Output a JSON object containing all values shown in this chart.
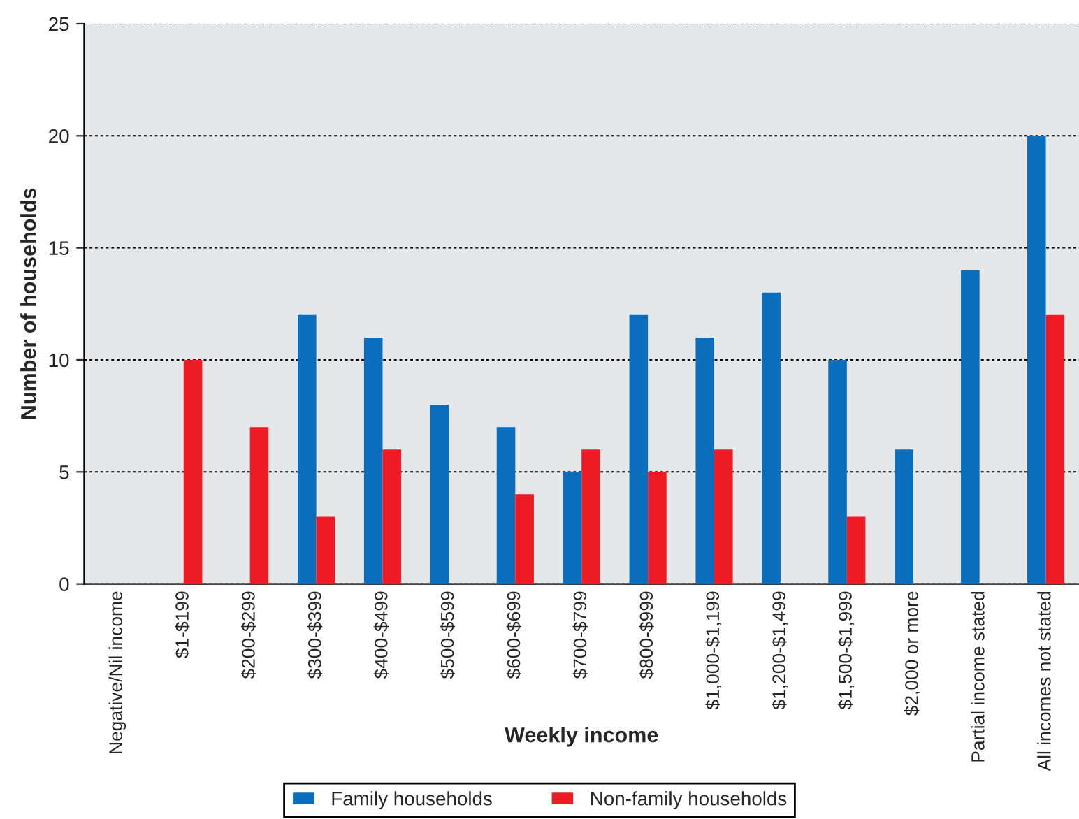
{
  "chart_data": {
    "type": "bar",
    "xlabel": "Weekly income",
    "ylabel": "Number of households",
    "categories": [
      "Negative/Nil income",
      "$1-$199",
      "$200-$299",
      "$300-$399",
      "$400-$499",
      "$500-$599",
      "$600-$699",
      "$700-$799",
      "$800-$999",
      "$1,000-$1,199",
      "$1,200-$1,499",
      "$1,500-$1,999",
      "$2,000 or more",
      "Partial income stated",
      "All incomes not stated"
    ],
    "series": [
      {
        "name": "Family households",
        "color": "#0a6ebd",
        "values": [
          0,
          0,
          0,
          12,
          11,
          8,
          7,
          5,
          12,
          11,
          13,
          10,
          6,
          14,
          20
        ]
      },
      {
        "name": "Non-family households",
        "color": "#ed1c24",
        "values": [
          0,
          10,
          7,
          3,
          6,
          0,
          4,
          6,
          5,
          6,
          0,
          3,
          0,
          0,
          12
        ]
      }
    ],
    "ylim": [
      0,
      25
    ],
    "yticks": [
      0,
      5,
      10,
      15,
      20,
      25
    ],
    "grid": "y",
    "legend": "bottom"
  }
}
